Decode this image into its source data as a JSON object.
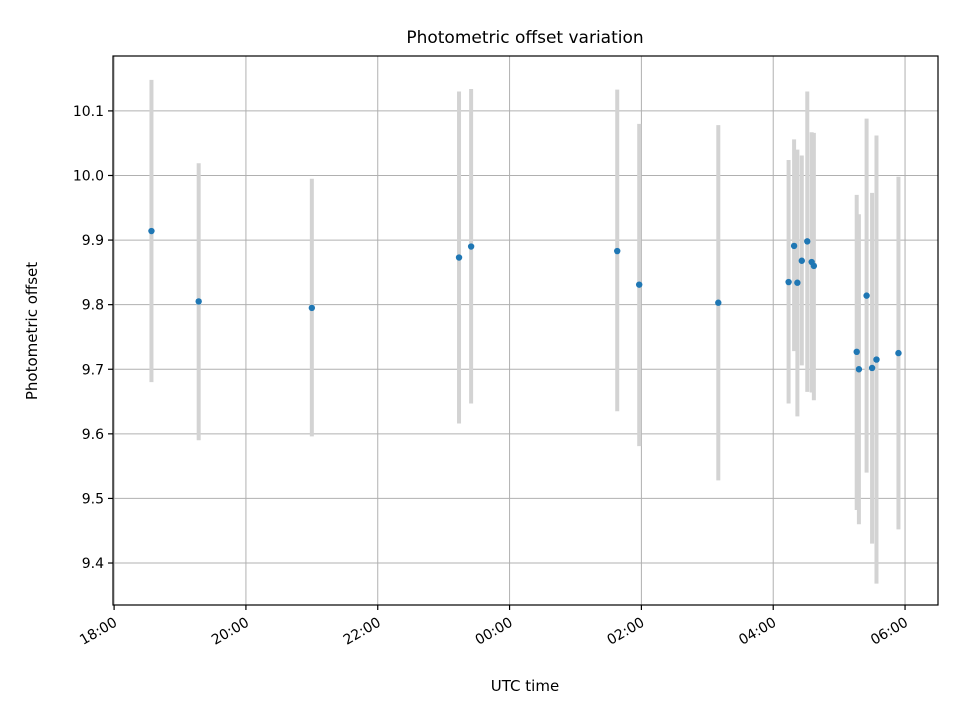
{
  "chart_data": {
    "type": "scatter",
    "title": "Photometric offset variation",
    "xlabel": "UTC time",
    "ylabel": "Photometric offset",
    "x_ticks": [
      "18:00",
      "20:00",
      "22:00",
      "00:00",
      "02:00",
      "04:00",
      "06:00"
    ],
    "y_ticks": [
      "9.4",
      "9.5",
      "9.6",
      "9.7",
      "9.8",
      "9.9",
      "10.0",
      "10.1"
    ],
    "xlim": [
      "17:59",
      "06:30"
    ],
    "ylim": [
      9.335,
      10.185
    ],
    "grid": true,
    "x_unit": "UTC time of day (spanning midnight)",
    "points": [
      {
        "t": "18:34",
        "y": 9.914,
        "lo": 9.68,
        "hi": 10.148
      },
      {
        "t": "19:17",
        "y": 9.805,
        "lo": 9.59,
        "hi": 10.019
      },
      {
        "t": "21:00",
        "y": 9.795,
        "lo": 9.596,
        "hi": 9.995
      },
      {
        "t": "23:14",
        "y": 9.873,
        "lo": 9.616,
        "hi": 10.13
      },
      {
        "t": "23:25",
        "y": 9.89,
        "lo": 9.647,
        "hi": 10.134
      },
      {
        "t": "01:38",
        "y": 9.883,
        "lo": 9.635,
        "hi": 10.133
      },
      {
        "t": "01:58",
        "y": 9.831,
        "lo": 9.581,
        "hi": 10.08
      },
      {
        "t": "03:10",
        "y": 9.803,
        "lo": 9.528,
        "hi": 10.078
      },
      {
        "t": "04:14",
        "y": 9.835,
        "lo": 9.647,
        "hi": 10.024
      },
      {
        "t": "04:19",
        "y": 9.891,
        "lo": 9.728,
        "hi": 10.056
      },
      {
        "t": "04:22",
        "y": 9.834,
        "lo": 9.627,
        "hi": 10.04
      },
      {
        "t": "04:26",
        "y": 9.868,
        "lo": 9.706,
        "hi": 10.031
      },
      {
        "t": "04:31",
        "y": 9.898,
        "lo": 9.665,
        "hi": 10.13
      },
      {
        "t": "04:35",
        "y": 9.866,
        "lo": 9.664,
        "hi": 10.067
      },
      {
        "t": "04:37",
        "y": 9.86,
        "lo": 9.652,
        "hi": 10.066
      },
      {
        "t": "05:16",
        "y": 9.727,
        "lo": 9.482,
        "hi": 9.97
      },
      {
        "t": "05:18",
        "y": 9.7,
        "lo": 9.46,
        "hi": 9.94
      },
      {
        "t": "05:25",
        "y": 9.814,
        "lo": 9.54,
        "hi": 10.088
      },
      {
        "t": "05:30",
        "y": 9.702,
        "lo": 9.43,
        "hi": 9.973
      },
      {
        "t": "05:34",
        "y": 9.715,
        "lo": 9.368,
        "hi": 10.062
      },
      {
        "t": "05:54",
        "y": 9.725,
        "lo": 9.452,
        "hi": 9.998
      }
    ],
    "marker_color": "#1f77b4",
    "errorbar_color": "#d3d3d3",
    "grid_color": "#b0b0b0"
  }
}
